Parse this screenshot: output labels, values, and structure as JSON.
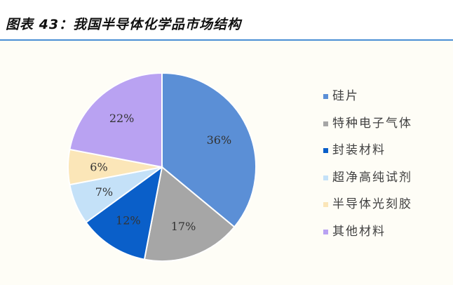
{
  "title": "图表 43：我国半导体化学品市场结构",
  "colors": {
    "accent_rule": "#4a8fd4",
    "background": "#fefdf6"
  },
  "chart_data": {
    "type": "pie",
    "title": "",
    "legend_position": "right",
    "start_angle": "12 o'clock",
    "direction": "clockwise",
    "slices": [
      {
        "name": "硅片",
        "value": 36,
        "label": "36%",
        "color": "#5b8fd6"
      },
      {
        "name": "特种电子气体",
        "value": 17,
        "label": "17%",
        "color": "#a6a6a6"
      },
      {
        "name": "封装材料",
        "value": 12,
        "label": "12%",
        "color": "#0a5fc9"
      },
      {
        "name": "超净高纯试剂",
        "value": 7,
        "label": "7%",
        "color": "#c4e1f8"
      },
      {
        "name": "半导体光刻胶",
        "value": 6,
        "label": "6%",
        "color": "#fbe6b8"
      },
      {
        "name": "其他材料",
        "value": 22,
        "label": "22%",
        "color": "#b9a2f2"
      }
    ]
  }
}
